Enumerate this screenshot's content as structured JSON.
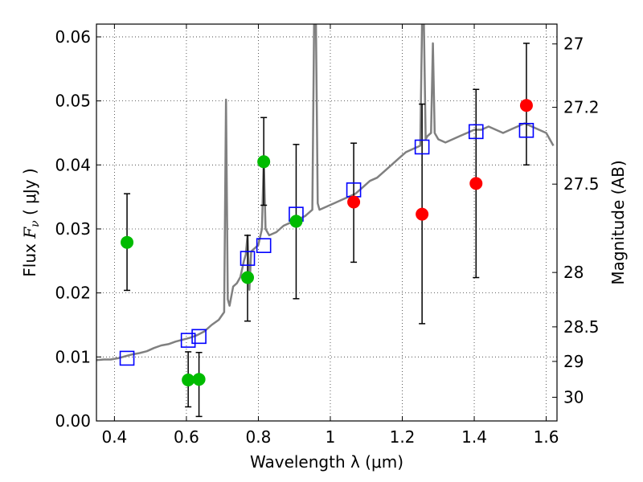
{
  "chart_data": {
    "type": "scatter",
    "title": "",
    "xlabel": "Wavelength  λ (μm)",
    "ylabel": "Flux  F_ν  ( μJy )",
    "y2label": "Magnitude (AB)",
    "xlim": [
      0.35,
      1.63
    ],
    "ylim": [
      0.0,
      0.062
    ],
    "grid": true,
    "x_ticks": [
      0.4,
      0.6,
      0.8,
      1.0,
      1.2,
      1.4,
      1.6
    ],
    "x_tick_labels": [
      "0.4",
      "0.6",
      "0.8",
      "1",
      "1.2",
      "1.4",
      "1.6"
    ],
    "y_ticks": [
      0.0,
      0.01,
      0.02,
      0.03,
      0.04,
      0.05,
      0.06
    ],
    "y_tick_labels": [
      "0.00",
      "0.01",
      "0.02",
      "0.03",
      "0.04",
      "0.05",
      "0.06"
    ],
    "y2_ticks": [
      {
        "label": "27",
        "flux": 0.0589
      },
      {
        "label": "27.2",
        "flux": 0.049
      },
      {
        "label": "27.5",
        "flux": 0.037
      },
      {
        "label": "28",
        "flux": 0.0232
      },
      {
        "label": "28.5",
        "flux": 0.0147
      },
      {
        "label": "29",
        "flux": 0.0093
      },
      {
        "label": "30",
        "flux": 0.0037
      }
    ],
    "series": [
      {
        "color": "#808080",
        "kind": "spectrum",
        "x": [
          0.35,
          0.37,
          0.39,
          0.41,
          0.43,
          0.45,
          0.47,
          0.49,
          0.51,
          0.53,
          0.55,
          0.57,
          0.59,
          0.61,
          0.63,
          0.65,
          0.67,
          0.69,
          0.705,
          0.71,
          0.715,
          0.72,
          0.73,
          0.74,
          0.75,
          0.76,
          0.765,
          0.77,
          0.775,
          0.78,
          0.79,
          0.8,
          0.81,
          0.815,
          0.82,
          0.83,
          0.85,
          0.87,
          0.89,
          0.91,
          0.93,
          0.95,
          0.955,
          0.96,
          0.965,
          0.97,
          0.99,
          1.01,
          1.03,
          1.05,
          1.07,
          1.09,
          1.11,
          1.13,
          1.15,
          1.17,
          1.19,
          1.21,
          1.23,
          1.25,
          1.255,
          1.26,
          1.265,
          1.27,
          1.28,
          1.285,
          1.29,
          1.3,
          1.32,
          1.34,
          1.36,
          1.38,
          1.4,
          1.42,
          1.44,
          1.46,
          1.48,
          1.5,
          1.52,
          1.54,
          1.56,
          1.58,
          1.6,
          1.62
        ],
        "y": [
          0.0095,
          0.0096,
          0.0096,
          0.0098,
          0.0101,
          0.0104,
          0.0106,
          0.0109,
          0.0114,
          0.0118,
          0.012,
          0.0124,
          0.0127,
          0.013,
          0.0134,
          0.014,
          0.015,
          0.0158,
          0.017,
          0.0502,
          0.019,
          0.018,
          0.021,
          0.0215,
          0.0225,
          0.025,
          0.026,
          0.029,
          0.0205,
          0.0265,
          0.027,
          0.0275,
          0.03,
          0.041,
          0.03,
          0.029,
          0.0295,
          0.0305,
          0.031,
          0.0315,
          0.032,
          0.033,
          0.062,
          0.062,
          0.034,
          0.033,
          0.0335,
          0.034,
          0.0345,
          0.035,
          0.0355,
          0.0365,
          0.0375,
          0.038,
          0.039,
          0.04,
          0.041,
          0.042,
          0.0425,
          0.043,
          0.062,
          0.062,
          0.044,
          0.0445,
          0.045,
          0.059,
          0.045,
          0.044,
          0.0435,
          0.044,
          0.0445,
          0.045,
          0.0455,
          0.0455,
          0.046,
          0.0455,
          0.045,
          0.0455,
          0.046,
          0.0465,
          0.046,
          0.0455,
          0.045,
          0.043
        ]
      },
      {
        "color": "#0000ff",
        "kind": "model-squares",
        "x": [
          0.435,
          0.605,
          0.635,
          0.77,
          0.815,
          0.905,
          1.065,
          1.255,
          1.405,
          1.545
        ],
        "y": [
          0.0098,
          0.0126,
          0.0132,
          0.0254,
          0.0274,
          0.0323,
          0.0361,
          0.0428,
          0.0452,
          0.0454
        ]
      },
      {
        "color": "#00bb00",
        "kind": "obs-green",
        "x": [
          0.435,
          0.605,
          0.635,
          0.77,
          0.815,
          0.905
        ],
        "y": [
          0.0279,
          0.0064,
          0.0065,
          0.0224,
          0.0405,
          0.0312
        ],
        "err_low": [
          0.0204,
          0.0022,
          0.0007,
          0.0156,
          0.0337,
          0.0191
        ],
        "err_high": [
          0.0355,
          0.0108,
          0.0107,
          0.029,
          0.0474,
          0.0432
        ]
      },
      {
        "color": "#ff0000",
        "kind": "obs-red",
        "x": [
          1.065,
          1.255,
          1.405,
          1.545
        ],
        "y": [
          0.0342,
          0.0323,
          0.0371,
          0.0493
        ],
        "err_low": [
          0.0248,
          0.0152,
          0.0224,
          0.04
        ],
        "err_high": [
          0.0434,
          0.0495,
          0.0518,
          0.059
        ]
      }
    ]
  }
}
